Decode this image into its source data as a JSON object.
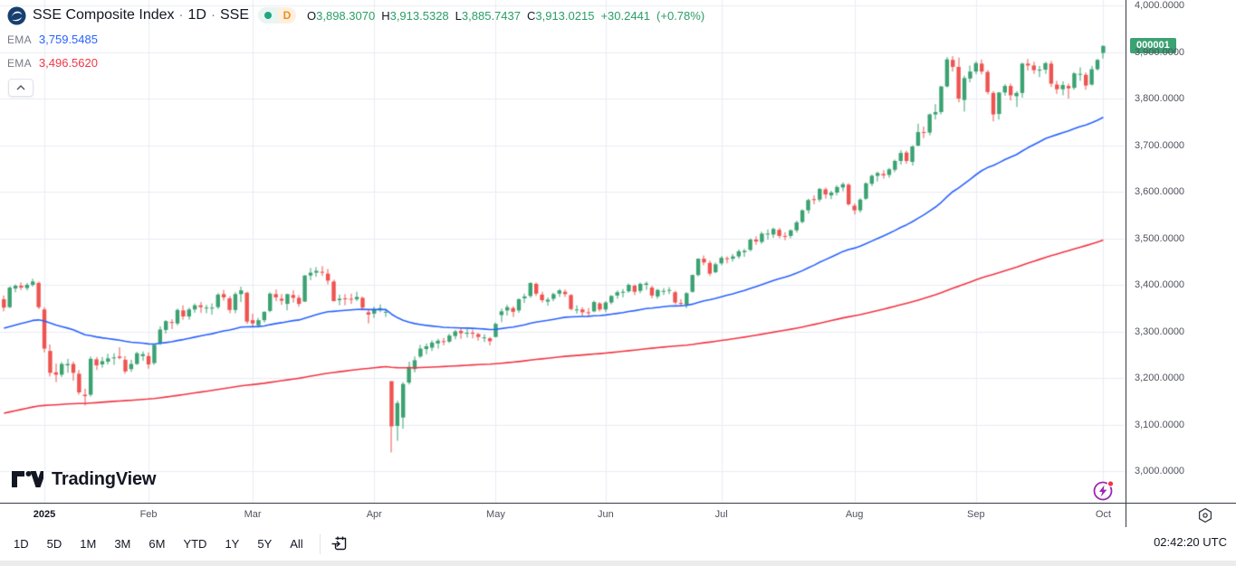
{
  "legend": {
    "symbol_name": "SSE Composite Index",
    "separator": "·",
    "interval": "1D",
    "exchange": "SSE",
    "status_dot_color": "#1ea683",
    "interval_badge": "D",
    "interval_badge_color": "#f28c1d",
    "ohlc_value_color": "#2a9e68",
    "ohlc": {
      "open_label": "O",
      "open": "3,898.3070",
      "high_label": "H",
      "high": "3,913.5328",
      "low_label": "L",
      "low": "3,885.7437",
      "close_label": "C",
      "close": "3,913.0215",
      "change": "+30.2441",
      "change_percent": "(+0.78%)"
    },
    "indicators": [
      {
        "label": "EMA",
        "value": "3,759.5485",
        "color": "#2962ff"
      },
      {
        "label": "EMA",
        "value": "3,496.5620",
        "color": "#f23645"
      }
    ]
  },
  "watermark": {
    "brand": "TradingView"
  },
  "price_scale": {
    "ticker_tag": "000001",
    "tag_color": "#3ba272"
  },
  "toolbar": {
    "ranges": [
      "1D",
      "5D",
      "1M",
      "3M",
      "6M",
      "YTD",
      "1Y",
      "5Y",
      "All"
    ],
    "clock": "02:42:20 UTC"
  },
  "chart_data": {
    "type": "candlestick",
    "title": "SSE Composite Index",
    "interval": "1D",
    "up_color": "#3ba272",
    "down_color": "#ef5350",
    "grid": true,
    "y_axis": {
      "min": 3000,
      "max": 4000,
      "step": 100,
      "decimals": 4
    },
    "x_ticks": [
      {
        "label": "2025",
        "index": 7,
        "bold": true
      },
      {
        "label": "Feb",
        "index": 25
      },
      {
        "label": "Mar",
        "index": 43
      },
      {
        "label": "Apr",
        "index": 64
      },
      {
        "label": "May",
        "index": 85
      },
      {
        "label": "Jun",
        "index": 104
      },
      {
        "label": "Jul",
        "index": 124
      },
      {
        "label": "Aug",
        "index": 147
      },
      {
        "label": "Sep",
        "index": 168
      },
      {
        "label": "Oct",
        "index": 190
      }
    ],
    "emas": [
      {
        "period": 50,
        "seed": 3305,
        "color": "#2962ff"
      },
      {
        "period": 200,
        "seed": 3122,
        "color": "#f23645"
      }
    ],
    "candles_format": [
      "open",
      "high",
      "low",
      "close"
    ],
    "candles": [
      [
        3369,
        3377,
        3343,
        3351
      ],
      [
        3352,
        3397,
        3350,
        3394
      ],
      [
        3392,
        3401,
        3384,
        3398
      ],
      [
        3398,
        3405,
        3389,
        3394
      ],
      [
        3393,
        3404,
        3388,
        3400
      ],
      [
        3400,
        3413,
        3396,
        3407
      ],
      [
        3404,
        3407,
        3348,
        3352
      ],
      [
        3347,
        3352,
        3255,
        3263
      ],
      [
        3258,
        3272,
        3203,
        3211
      ],
      [
        3212,
        3231,
        3191,
        3207
      ],
      [
        3207,
        3234,
        3202,
        3230
      ],
      [
        3227,
        3241,
        3211,
        3230
      ],
      [
        3230,
        3235,
        3194,
        3211
      ],
      [
        3209,
        3217,
        3164,
        3169
      ],
      [
        3164,
        3177,
        3141,
        3161
      ],
      [
        3164,
        3246,
        3160,
        3241
      ],
      [
        3240,
        3245,
        3217,
        3227
      ],
      [
        3229,
        3245,
        3222,
        3236
      ],
      [
        3235,
        3252,
        3229,
        3242
      ],
      [
        3244,
        3253,
        3228,
        3244
      ],
      [
        3246,
        3266,
        3240,
        3243
      ],
      [
        3239,
        3247,
        3209,
        3214
      ],
      [
        3219,
        3239,
        3213,
        3230
      ],
      [
        3230,
        3256,
        3228,
        3253
      ],
      [
        3247,
        3257,
        3237,
        3251
      ],
      [
        3247,
        3255,
        3220,
        3229
      ],
      [
        3232,
        3273,
        3228,
        3271
      ],
      [
        3274,
        3311,
        3271,
        3304
      ],
      [
        3303,
        3324,
        3295,
        3322
      ],
      [
        3320,
        3326,
        3305,
        3318
      ],
      [
        3317,
        3349,
        3313,
        3346
      ],
      [
        3345,
        3356,
        3325,
        3332
      ],
      [
        3332,
        3351,
        3325,
        3347
      ],
      [
        3347,
        3360,
        3340,
        3356
      ],
      [
        3356,
        3363,
        3340,
        3352
      ],
      [
        3350,
        3357,
        3339,
        3351
      ],
      [
        3350,
        3360,
        3336,
        3351
      ],
      [
        3352,
        3382,
        3348,
        3379
      ],
      [
        3380,
        3389,
        3366,
        3373
      ],
      [
        3371,
        3376,
        3339,
        3346
      ],
      [
        3346,
        3384,
        3339,
        3380
      ],
      [
        3380,
        3396,
        3363,
        3388
      ],
      [
        3383,
        3385,
        3316,
        3321
      ],
      [
        3324,
        3338,
        3310,
        3317
      ],
      [
        3313,
        3329,
        3308,
        3324
      ],
      [
        3324,
        3343,
        3319,
        3342
      ],
      [
        3344,
        3384,
        3341,
        3381
      ],
      [
        3380,
        3390,
        3365,
        3373
      ],
      [
        3370,
        3380,
        3357,
        3366
      ],
      [
        3359,
        3381,
        3345,
        3380
      ],
      [
        3378,
        3388,
        3362,
        3372
      ],
      [
        3372,
        3378,
        3353,
        3359
      ],
      [
        3364,
        3421,
        3363,
        3420
      ],
      [
        3420,
        3436,
        3410,
        3426
      ],
      [
        3426,
        3438,
        3417,
        3430
      ],
      [
        3428,
        3440,
        3419,
        3426
      ],
      [
        3424,
        3434,
        3401,
        3409
      ],
      [
        3407,
        3411,
        3364,
        3365
      ],
      [
        3367,
        3379,
        3356,
        3370
      ],
      [
        3371,
        3380,
        3356,
        3370
      ],
      [
        3370,
        3381,
        3359,
        3369
      ],
      [
        3369,
        3385,
        3365,
        3374
      ],
      [
        3372,
        3375,
        3345,
        3351
      ],
      [
        3341,
        3348,
        3317,
        3336
      ],
      [
        3338,
        3353,
        3329,
        3348
      ],
      [
        3347,
        3358,
        3341,
        3350
      ],
      [
        3342,
        3348,
        3331,
        3342
      ],
      [
        3193,
        3193,
        3040,
        3096
      ],
      [
        3097,
        3151,
        3065,
        3146
      ],
      [
        3115,
        3191,
        3091,
        3187
      ],
      [
        3190,
        3235,
        3186,
        3224
      ],
      [
        3219,
        3246,
        3212,
        3238
      ],
      [
        3246,
        3271,
        3243,
        3263
      ],
      [
        3262,
        3274,
        3251,
        3268
      ],
      [
        3265,
        3281,
        3258,
        3276
      ],
      [
        3274,
        3284,
        3263,
        3280
      ],
      [
        3279,
        3286,
        3270,
        3277
      ],
      [
        3278,
        3295,
        3275,
        3291
      ],
      [
        3290,
        3303,
        3283,
        3300
      ],
      [
        3301,
        3307,
        3284,
        3296
      ],
      [
        3295,
        3305,
        3287,
        3297
      ],
      [
        3297,
        3304,
        3285,
        3295
      ],
      [
        3294,
        3297,
        3280,
        3288
      ],
      [
        3286,
        3294,
        3277,
        3287
      ],
      [
        3285,
        3288,
        3270,
        3279
      ],
      [
        3288,
        3319,
        3287,
        3316
      ],
      [
        3335,
        3349,
        3320,
        3343
      ],
      [
        3345,
        3357,
        3334,
        3352
      ],
      [
        3350,
        3354,
        3331,
        3342
      ],
      [
        3345,
        3371,
        3340,
        3369
      ],
      [
        3371,
        3381,
        3361,
        3375
      ],
      [
        3376,
        3405,
        3372,
        3404
      ],
      [
        3402,
        3405,
        3376,
        3381
      ],
      [
        3379,
        3385,
        3362,
        3367
      ],
      [
        3364,
        3373,
        3355,
        3368
      ],
      [
        3370,
        3383,
        3365,
        3380
      ],
      [
        3381,
        3391,
        3374,
        3388
      ],
      [
        3385,
        3390,
        3374,
        3380
      ],
      [
        3378,
        3380,
        3345,
        3348
      ],
      [
        3346,
        3356,
        3338,
        3347
      ],
      [
        3347,
        3352,
        3333,
        3341
      ],
      [
        3341,
        3350,
        3333,
        3340
      ],
      [
        3343,
        3366,
        3341,
        3363
      ],
      [
        3360,
        3363,
        3343,
        3347
      ],
      [
        3347,
        3365,
        3341,
        3362
      ],
      [
        3362,
        3378,
        3358,
        3376
      ],
      [
        3377,
        3388,
        3370,
        3384
      ],
      [
        3383,
        3391,
        3373,
        3385
      ],
      [
        3386,
        3403,
        3383,
        3400
      ],
      [
        3398,
        3401,
        3378,
        3385
      ],
      [
        3387,
        3405,
        3382,
        3402
      ],
      [
        3400,
        3407,
        3389,
        3403
      ],
      [
        3394,
        3398,
        3371,
        3377
      ],
      [
        3375,
        3391,
        3370,
        3389
      ],
      [
        3387,
        3393,
        3378,
        3387
      ],
      [
        3387,
        3395,
        3380,
        3389
      ],
      [
        3384,
        3387,
        3358,
        3362
      ],
      [
        3361,
        3369,
        3353,
        3360
      ],
      [
        3357,
        3384,
        3350,
        3382
      ],
      [
        3385,
        3422,
        3383,
        3421
      ],
      [
        3421,
        3457,
        3418,
        3456
      ],
      [
        3456,
        3463,
        3442,
        3448
      ],
      [
        3447,
        3452,
        3419,
        3424
      ],
      [
        3427,
        3448,
        3425,
        3444
      ],
      [
        3446,
        3462,
        3442,
        3458
      ],
      [
        3457,
        3461,
        3446,
        3455
      ],
      [
        3456,
        3466,
        3450,
        3461
      ],
      [
        3461,
        3476,
        3456,
        3472
      ],
      [
        3470,
        3477,
        3460,
        3473
      ],
      [
        3475,
        3500,
        3472,
        3497
      ],
      [
        3497,
        3504,
        3486,
        3493
      ],
      [
        3492,
        3514,
        3488,
        3510
      ],
      [
        3508,
        3519,
        3497,
        3510
      ],
      [
        3508,
        3523,
        3501,
        3520
      ],
      [
        3518,
        3522,
        3500,
        3505
      ],
      [
        3505,
        3513,
        3496,
        3504
      ],
      [
        3505,
        3519,
        3500,
        3517
      ],
      [
        3517,
        3538,
        3512,
        3534
      ],
      [
        3535,
        3562,
        3532,
        3560
      ],
      [
        3560,
        3585,
        3553,
        3582
      ],
      [
        3584,
        3592,
        3573,
        3582
      ],
      [
        3583,
        3608,
        3578,
        3606
      ],
      [
        3605,
        3609,
        3585,
        3594
      ],
      [
        3592,
        3602,
        3584,
        3598
      ],
      [
        3598,
        3614,
        3592,
        3610
      ],
      [
        3609,
        3620,
        3601,
        3616
      ],
      [
        3615,
        3618,
        3570,
        3573
      ],
      [
        3570,
        3575,
        3551,
        3560
      ],
      [
        3560,
        3586,
        3555,
        3583
      ],
      [
        3585,
        3620,
        3582,
        3618
      ],
      [
        3617,
        3637,
        3612,
        3634
      ],
      [
        3634,
        3643,
        3622,
        3640
      ],
      [
        3638,
        3646,
        3628,
        3635
      ],
      [
        3636,
        3651,
        3630,
        3648
      ],
      [
        3647,
        3669,
        3642,
        3666
      ],
      [
        3666,
        3689,
        3658,
        3683
      ],
      [
        3684,
        3688,
        3660,
        3666
      ],
      [
        3664,
        3700,
        3656,
        3697
      ],
      [
        3699,
        3746,
        3697,
        3728
      ],
      [
        3728,
        3740,
        3715,
        3727
      ],
      [
        3727,
        3768,
        3721,
        3766
      ],
      [
        3766,
        3788,
        3755,
        3771
      ],
      [
        3771,
        3827,
        3766,
        3826
      ],
      [
        3826,
        3889,
        3824,
        3884
      ],
      [
        3883,
        3891,
        3858,
        3868
      ],
      [
        3868,
        3888,
        3792,
        3800
      ],
      [
        3797,
        3849,
        3772,
        3844
      ],
      [
        3843,
        3871,
        3835,
        3858
      ],
      [
        3858,
        3880,
        3852,
        3876
      ],
      [
        3875,
        3884,
        3852,
        3858
      ],
      [
        3857,
        3861,
        3809,
        3814
      ],
      [
        3812,
        3816,
        3751,
        3766
      ],
      [
        3767,
        3814,
        3755,
        3813
      ],
      [
        3813,
        3831,
        3806,
        3827
      ],
      [
        3827,
        3832,
        3796,
        3807
      ],
      [
        3805,
        3816,
        3782,
        3812
      ],
      [
        3812,
        3877,
        3802,
        3875
      ],
      [
        3875,
        3885,
        3860,
        3871
      ],
      [
        3871,
        3879,
        3853,
        3861
      ],
      [
        3860,
        3870,
        3846,
        3862
      ],
      [
        3862,
        3879,
        3853,
        3876
      ],
      [
        3875,
        3881,
        3825,
        3832
      ],
      [
        3830,
        3838,
        3810,
        3820
      ],
      [
        3820,
        3837,
        3807,
        3829
      ],
      [
        3827,
        3832,
        3800,
        3822
      ],
      [
        3823,
        3857,
        3819,
        3854
      ],
      [
        3853,
        3867,
        3838,
        3853
      ],
      [
        3851,
        3856,
        3819,
        3828
      ],
      [
        3830,
        3870,
        3828,
        3863
      ],
      [
        3863,
        3885,
        3860,
        3883
      ],
      [
        3898,
        3914,
        3886,
        3913
      ]
    ]
  }
}
